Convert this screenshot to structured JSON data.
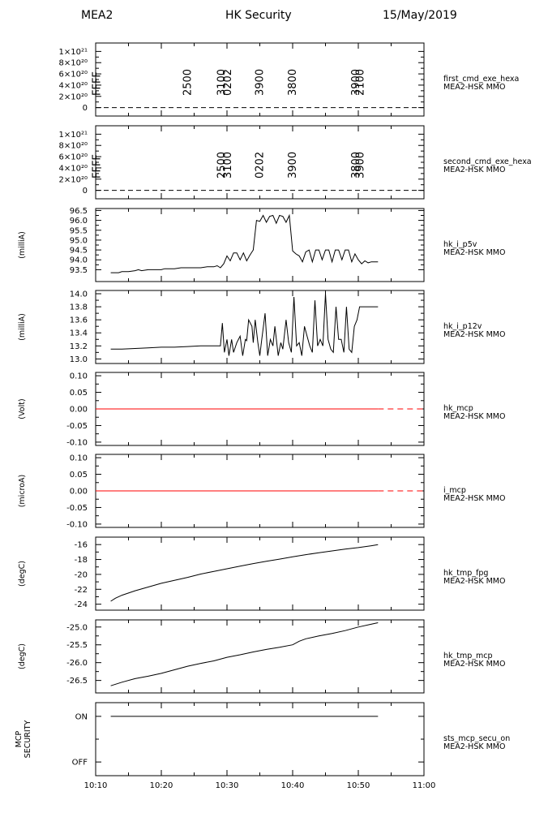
{
  "header": {
    "left": "MEA2",
    "center": "HK Security",
    "right": "15/May/2019"
  },
  "chart_data": {
    "type": "line",
    "x_axis": {
      "range": [
        "10:10",
        "11:00"
      ],
      "tick_labels": [
        "10:10",
        "10:20",
        "10:30",
        "10:40",
        "10:50",
        "11:00"
      ]
    },
    "panels": [
      {
        "id": "first_cmd_exe_hexa",
        "name": "first_cmd_exe_hexa",
        "source": "MEA2-HSK MMO",
        "unit": "",
        "ylim": [
          -1.5e+20,
          1.15e+21
        ],
        "ytick_labels": [
          "1×10²¹",
          "8×10²⁰",
          "6×10²⁰",
          "4×10²⁰",
          "2×10²⁰",
          "0"
        ],
        "ytick_values": [
          1e+21,
          8e+20,
          6e+20,
          4e+20,
          2e+20,
          0
        ],
        "zero_line": true,
        "codes": [
          {
            "t": 10.2,
            "label": "FFFF"
          },
          {
            "t": 24.0,
            "label": "2500"
          },
          {
            "t": 29.2,
            "label": "3100"
          },
          {
            "t": 30.1,
            "label": "0202"
          },
          {
            "t": 35.0,
            "label": "3900"
          },
          {
            "t": 40.0,
            "label": "3800"
          },
          {
            "t": 49.6,
            "label": "3900"
          },
          {
            "t": 50.3,
            "label": "2100"
          }
        ]
      },
      {
        "id": "second_cmd_exe_hexa",
        "name": "second_cmd_exe_hexa",
        "source": "MEA2-HSK MMO",
        "unit": "",
        "ylim": [
          -1.5e+20,
          1.15e+21
        ],
        "ytick_labels": [
          "1×10²¹",
          "8×10²⁰",
          "6×10²⁰",
          "4×10²⁰",
          "2×10²⁰",
          "0"
        ],
        "ytick_values": [
          1e+21,
          8e+20,
          6e+20,
          4e+20,
          2e+20,
          0
        ],
        "zero_line": true,
        "codes": [
          {
            "t": 10.2,
            "label": "FFFF"
          },
          {
            "t": 29.2,
            "label": "2500"
          },
          {
            "t": 30.1,
            "label": "3100"
          },
          {
            "t": 35.0,
            "label": "0202"
          },
          {
            "t": 40.0,
            "label": "3900"
          },
          {
            "t": 49.6,
            "label": "3800"
          },
          {
            "t": 50.3,
            "label": "3900"
          }
        ]
      },
      {
        "id": "hk_i_p5v",
        "name": "hk_i_p5v",
        "source": "MEA2-HSK MMO",
        "unit": "(milliA)",
        "ylim": [
          92.9,
          96.6
        ],
        "ytick_values": [
          93.5,
          94.0,
          94.5,
          95.0,
          95.5,
          96.0,
          96.5
        ],
        "ytick_labels": [
          "93.5",
          "94.0",
          "94.5",
          "95.0",
          "95.5",
          "96.0",
          "96.5"
        ],
        "x": [
          12.3,
          13.5,
          14,
          15,
          16,
          16.5,
          17,
          18,
          19,
          20,
          20.5,
          21,
          22,
          23,
          24,
          25,
          26,
          27,
          28,
          28.5,
          29,
          29.5,
          30,
          30.5,
          31,
          31.5,
          32,
          32.5,
          33,
          33.5,
          34,
          34.5,
          35,
          35.5,
          36,
          36.5,
          37,
          37.5,
          38,
          38.5,
          39,
          39.5,
          40,
          40.5,
          41,
          41.5,
          42,
          42.5,
          43,
          43.5,
          44,
          44.5,
          45,
          45.5,
          46,
          46.5,
          47,
          47.5,
          48,
          48.5,
          49,
          49.5,
          50,
          50.5,
          51,
          51.5,
          52,
          53
        ],
        "y": [
          93.35,
          93.35,
          93.4,
          93.4,
          93.45,
          93.5,
          93.45,
          93.5,
          93.5,
          93.5,
          93.55,
          93.55,
          93.55,
          93.6,
          93.6,
          93.6,
          93.6,
          93.65,
          93.65,
          93.7,
          93.6,
          93.8,
          94.2,
          93.95,
          94.35,
          94.35,
          94.0,
          94.35,
          93.95,
          94.25,
          94.5,
          96.0,
          95.95,
          96.25,
          95.9,
          96.2,
          96.25,
          95.85,
          96.25,
          96.2,
          95.9,
          96.25,
          94.45,
          94.3,
          94.2,
          93.9,
          94.4,
          94.5,
          93.9,
          94.5,
          94.5,
          94.0,
          94.5,
          94.5,
          93.9,
          94.5,
          94.5,
          94.0,
          94.5,
          94.5,
          93.9,
          94.3,
          94.0,
          93.8,
          93.95,
          93.85,
          93.9,
          93.9
        ]
      },
      {
        "id": "hk_i_p12v",
        "name": "hk_i_p12v",
        "source": "MEA2-HSK MMO",
        "unit": "(milliA)",
        "ylim": [
          12.93,
          14.05
        ],
        "ytick_values": [
          13.0,
          13.2,
          13.4,
          13.6,
          13.8,
          14.0
        ],
        "ytick_labels": [
          "13.0",
          "13.2",
          "13.4",
          "13.6",
          "13.8",
          "14.0"
        ],
        "x": [
          12.3,
          14,
          16,
          18,
          20,
          22,
          24,
          26,
          28,
          29,
          29.3,
          29.6,
          30,
          30.3,
          30.7,
          31,
          31.5,
          32,
          32.4,
          32.8,
          33,
          33.3,
          33.8,
          34,
          34.3,
          34.7,
          35,
          35.3,
          35.8,
          36.2,
          36.6,
          37,
          37.3,
          37.8,
          38.2,
          38.5,
          39,
          39.4,
          39.8,
          40.2,
          40.6,
          41,
          41.4,
          41.8,
          42.2,
          42.6,
          43,
          43.4,
          43.8,
          44.2,
          44.6,
          45,
          45.4,
          45.8,
          46.2,
          46.6,
          47,
          47.4,
          47.8,
          48.2,
          48.6,
          49,
          49.4,
          49.8,
          50.2,
          50.6,
          51,
          51.4,
          52,
          53
        ],
        "y": [
          13.15,
          13.15,
          13.16,
          13.17,
          13.18,
          13.18,
          13.19,
          13.2,
          13.2,
          13.2,
          13.55,
          13.1,
          13.3,
          13.05,
          13.3,
          13.1,
          13.25,
          13.35,
          13.05,
          13.3,
          13.28,
          13.6,
          13.5,
          13.25,
          13.6,
          13.25,
          13.05,
          13.3,
          13.7,
          13.05,
          13.3,
          13.2,
          13.5,
          13.05,
          13.25,
          13.15,
          13.6,
          13.25,
          13.1,
          13.95,
          13.2,
          13.25,
          13.05,
          13.5,
          13.35,
          13.2,
          13.1,
          13.9,
          13.2,
          13.3,
          13.2,
          14.0,
          13.3,
          13.15,
          13.1,
          13.8,
          13.3,
          13.3,
          13.1,
          13.8,
          13.15,
          13.1,
          13.5,
          13.6,
          13.8,
          13.8,
          13.8,
          13.8,
          13.8,
          13.8
        ]
      },
      {
        "id": "hk_mcp",
        "name": "hk_mcp",
        "source": "MEA2-HSK MMO",
        "unit": "(Volt)",
        "ylim": [
          -0.11,
          0.11
        ],
        "ytick_values": [
          0.1,
          0.05,
          0.0,
          -0.05,
          -0.1
        ],
        "ytick_labels": [
          "0.10",
          "0.05",
          "0.00",
          "-0.05",
          "-0.10"
        ],
        "series": [
          {
            "value": 0.0,
            "color": "#ff0000",
            "x_start": 10.0,
            "x_solid_end": 53.0,
            "x_end": 60.0
          }
        ]
      },
      {
        "id": "i_mcp",
        "name": "i_mcp",
        "source": "MEA2-HSK MMO",
        "unit": "(microA)",
        "ylim": [
          -0.11,
          0.11
        ],
        "ytick_values": [
          0.1,
          0.05,
          0.0,
          -0.05,
          -0.1
        ],
        "ytick_labels": [
          "0.10",
          "0.05",
          "0.00",
          "-0.05",
          "-0.10"
        ],
        "series": [
          {
            "value": 0.0,
            "color": "#ff0000",
            "x_start": 10.0,
            "x_solid_end": 53.0,
            "x_end": 60.0
          }
        ]
      },
      {
        "id": "hk_tmp_fpg",
        "name": "hk_tmp_fpg",
        "source": "MEA2-HSK MMO",
        "unit": "(degC)",
        "ylim": [
          -24.8,
          -15.0
        ],
        "ytick_values": [
          -16,
          -18,
          -20,
          -22,
          -24
        ],
        "ytick_labels": [
          "-16",
          "-18",
          "-20",
          "-22",
          "-24"
        ],
        "x": [
          12.3,
          13,
          14,
          15,
          16,
          18,
          20,
          22,
          24,
          26,
          28,
          30,
          32,
          34,
          36,
          38,
          40,
          42,
          44,
          46,
          48,
          50,
          52,
          53
        ],
        "y": [
          -23.6,
          -23.2,
          -22.8,
          -22.5,
          -22.2,
          -21.7,
          -21.2,
          -20.8,
          -20.4,
          -19.95,
          -19.6,
          -19.25,
          -18.9,
          -18.55,
          -18.25,
          -17.95,
          -17.65,
          -17.35,
          -17.1,
          -16.85,
          -16.6,
          -16.4,
          -16.15,
          -16.0
        ]
      },
      {
        "id": "hk_tmp_mcp",
        "name": "hk_tmp_mcp",
        "source": "MEA2-HSK MMO",
        "unit": "(degC)",
        "ylim": [
          -26.85,
          -24.8
        ],
        "ytick_values": [
          -25.0,
          -25.5,
          -26.0,
          -26.5
        ],
        "ytick_labels": [
          "-25.0",
          "-25.5",
          "-26.0",
          "-26.5"
        ],
        "x": [
          12.3,
          14,
          16,
          18,
          20,
          22,
          24,
          26,
          28,
          30,
          32,
          34,
          36,
          38,
          40,
          41,
          42,
          44,
          46,
          48,
          50,
          52,
          53
        ],
        "y": [
          -26.65,
          -26.55,
          -26.45,
          -26.38,
          -26.3,
          -26.2,
          -26.1,
          -26.02,
          -25.95,
          -25.85,
          -25.78,
          -25.7,
          -25.63,
          -25.57,
          -25.5,
          -25.4,
          -25.33,
          -25.25,
          -25.18,
          -25.1,
          -25.0,
          -24.92,
          -24.88
        ]
      },
      {
        "id": "sts_mcp_secu_on",
        "name": "sts_mcp_secu_on",
        "source": "MEA2-HSK MMO",
        "unit": "MCP SECURITY",
        "ylim": [
          -0.3,
          1.3
        ],
        "ytick_values": [
          1,
          0
        ],
        "ytick_labels": [
          "ON",
          "OFF"
        ],
        "x": [
          12.3,
          53.0
        ],
        "y": [
          1,
          1
        ]
      }
    ]
  }
}
